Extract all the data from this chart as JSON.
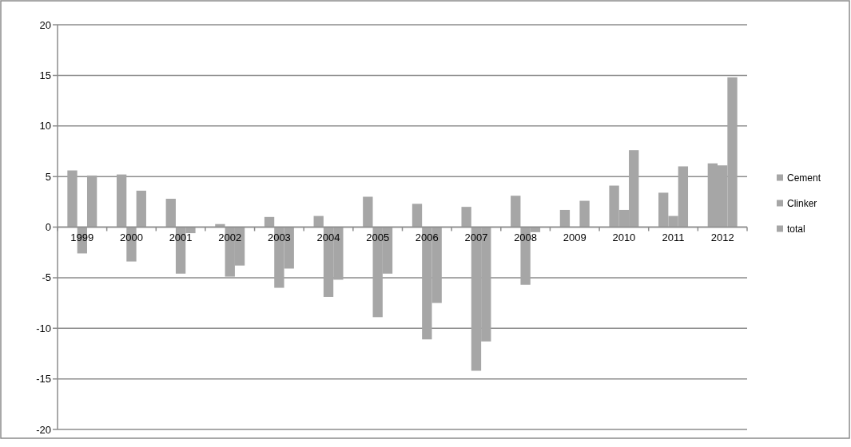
{
  "chart_data": {
    "type": "bar",
    "categories": [
      "1999",
      "2000",
      "2001",
      "2002",
      "2003",
      "2004",
      "2005",
      "2006",
      "2007",
      "2008",
      "2009",
      "2010",
      "2011",
      "2012"
    ],
    "series": [
      {
        "name": "Cement",
        "color": "#a6a6a6",
        "values": [
          5.6,
          5.2,
          2.8,
          0.3,
          1.0,
          1.1,
          3.0,
          2.3,
          2.0,
          3.1,
          1.7,
          4.1,
          3.4,
          6.3
        ]
      },
      {
        "name": "Clinker",
        "color": "#a6a6a6",
        "values": [
          -2.6,
          -3.4,
          -4.6,
          -4.9,
          -6.0,
          -6.9,
          -8.9,
          -11.1,
          -14.2,
          -5.7,
          null,
          1.7,
          1.1,
          6.1
        ]
      },
      {
        "name": "total",
        "color": "#a6a6a6",
        "values": [
          5.1,
          3.6,
          -0.6,
          -3.8,
          -4.1,
          -5.2,
          -4.6,
          -7.5,
          -11.3,
          -0.5,
          2.6,
          7.6,
          6.0,
          14.8
        ]
      }
    ],
    "ylim": [
      -20,
      20
    ],
    "yticks": [
      -20,
      -15,
      -10,
      -5,
      0,
      5,
      10,
      15,
      20
    ],
    "grid": "y",
    "legend": "right"
  }
}
